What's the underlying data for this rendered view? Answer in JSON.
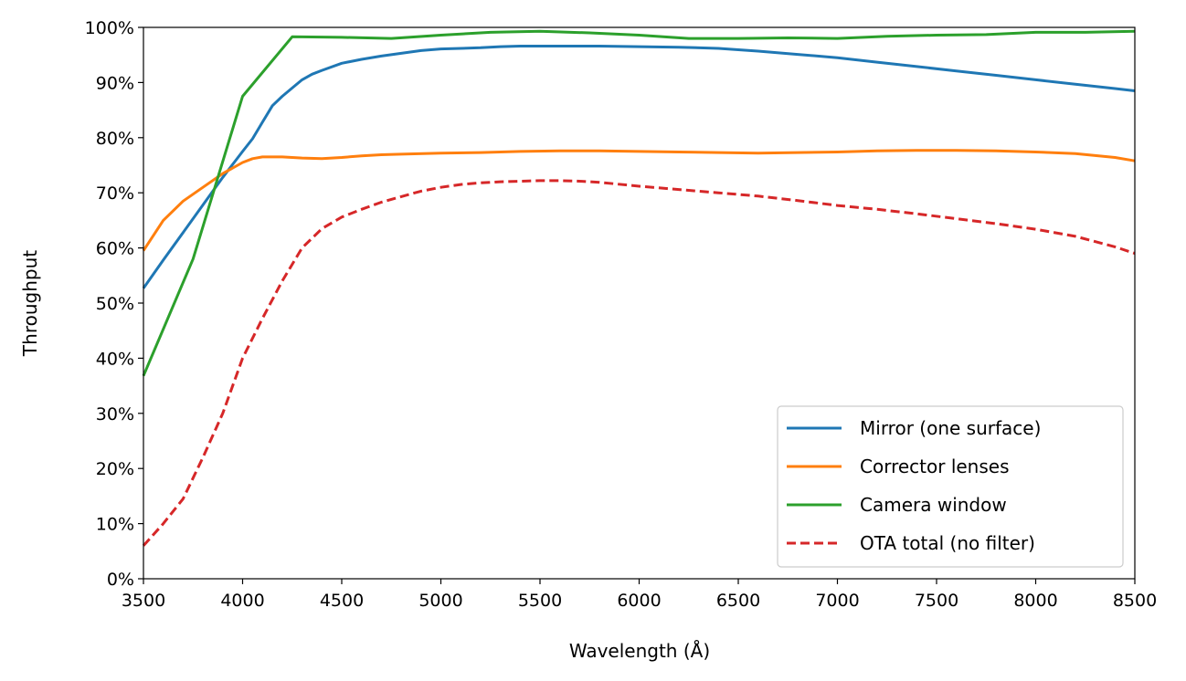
{
  "chart_data": {
    "type": "line",
    "xlabel": "Wavelength (Å)",
    "ylabel": "Throughput",
    "xlim": [
      3500,
      8500
    ],
    "ylim": [
      0,
      1
    ],
    "xticks": [
      3500,
      4000,
      4500,
      5000,
      5500,
      6000,
      6500,
      7000,
      7500,
      8000,
      8500
    ],
    "xtick_labels": [
      "3500",
      "4000",
      "4500",
      "5000",
      "5500",
      "6000",
      "6500",
      "7000",
      "7500",
      "8000",
      "8500"
    ],
    "yticks": [
      0,
      0.1,
      0.2,
      0.3,
      0.4,
      0.5,
      0.6,
      0.7,
      0.8,
      0.9,
      1.0
    ],
    "ytick_labels": [
      "0%",
      "10%",
      "20%",
      "30%",
      "40%",
      "50%",
      "60%",
      "70%",
      "80%",
      "90%",
      "100%"
    ],
    "grid": false,
    "legend_position": "lower-right",
    "series": [
      {
        "name": "Mirror (one surface)",
        "color": "#1f77b4",
        "style": "solid",
        "x": [
          3500,
          3600,
          3700,
          3800,
          3900,
          4000,
          4050,
          4100,
          4150,
          4200,
          4250,
          4300,
          4350,
          4400,
          4500,
          4600,
          4700,
          4800,
          4900,
          5000,
          5100,
          5200,
          5300,
          5400,
          5500,
          5600,
          5700,
          5800,
          6000,
          6200,
          6400,
          6600,
          6800,
          7000,
          7200,
          7400,
          7600,
          7800,
          8000,
          8200,
          8400,
          8500
        ],
        "y": [
          0.527,
          0.578,
          0.628,
          0.678,
          0.728,
          0.775,
          0.798,
          0.828,
          0.858,
          0.875,
          0.89,
          0.905,
          0.915,
          0.922,
          0.935,
          0.942,
          0.948,
          0.953,
          0.958,
          0.961,
          0.962,
          0.963,
          0.965,
          0.966,
          0.966,
          0.966,
          0.966,
          0.966,
          0.965,
          0.964,
          0.962,
          0.957,
          0.951,
          0.945,
          0.937,
          0.929,
          0.921,
          0.913,
          0.905,
          0.897,
          0.889,
          0.885
        ]
      },
      {
        "name": "Corrector lenses",
        "color": "#ff7f0e",
        "style": "solid",
        "x": [
          3500,
          3600,
          3700,
          3800,
          3900,
          4000,
          4050,
          4100,
          4200,
          4300,
          4400,
          4500,
          4600,
          4700,
          4800,
          5000,
          5200,
          5400,
          5600,
          5800,
          6000,
          6200,
          6400,
          6600,
          6800,
          7000,
          7200,
          7400,
          7600,
          7800,
          8000,
          8200,
          8400,
          8500
        ],
        "y": [
          0.595,
          0.65,
          0.685,
          0.71,
          0.735,
          0.755,
          0.762,
          0.765,
          0.765,
          0.763,
          0.762,
          0.764,
          0.767,
          0.769,
          0.77,
          0.772,
          0.773,
          0.775,
          0.776,
          0.776,
          0.775,
          0.774,
          0.773,
          0.772,
          0.773,
          0.774,
          0.776,
          0.777,
          0.777,
          0.776,
          0.774,
          0.771,
          0.764,
          0.758
        ]
      },
      {
        "name": "Camera window",
        "color": "#2ca02c",
        "style": "solid",
        "x": [
          3500,
          3750,
          4000,
          4250,
          4500,
          4750,
          5000,
          5250,
          5500,
          5750,
          6000,
          6250,
          6500,
          6750,
          7000,
          7250,
          7500,
          7750,
          8000,
          8250,
          8500
        ],
        "y": [
          0.368,
          0.58,
          0.875,
          0.983,
          0.982,
          0.98,
          0.986,
          0.991,
          0.993,
          0.99,
          0.986,
          0.98,
          0.98,
          0.981,
          0.98,
          0.984,
          0.986,
          0.987,
          0.991,
          0.991,
          0.993
        ]
      },
      {
        "name": "OTA total (no filter)",
        "color": "#d62728",
        "style": "dashed",
        "x": [
          3500,
          3600,
          3700,
          3800,
          3900,
          4000,
          4100,
          4200,
          4300,
          4400,
          4500,
          4600,
          4700,
          4800,
          4900,
          5000,
          5100,
          5200,
          5300,
          5400,
          5500,
          5600,
          5700,
          5800,
          6000,
          6200,
          6400,
          6600,
          6800,
          7000,
          7200,
          7400,
          7600,
          7800,
          8000,
          8200,
          8400,
          8500
        ],
        "y": [
          0.06,
          0.1,
          0.145,
          0.22,
          0.3,
          0.4,
          0.472,
          0.54,
          0.6,
          0.635,
          0.656,
          0.67,
          0.683,
          0.693,
          0.703,
          0.71,
          0.715,
          0.718,
          0.72,
          0.721,
          0.722,
          0.722,
          0.721,
          0.719,
          0.712,
          0.706,
          0.7,
          0.694,
          0.686,
          0.677,
          0.67,
          0.662,
          0.653,
          0.644,
          0.634,
          0.621,
          0.602,
          0.59
        ]
      }
    ]
  }
}
